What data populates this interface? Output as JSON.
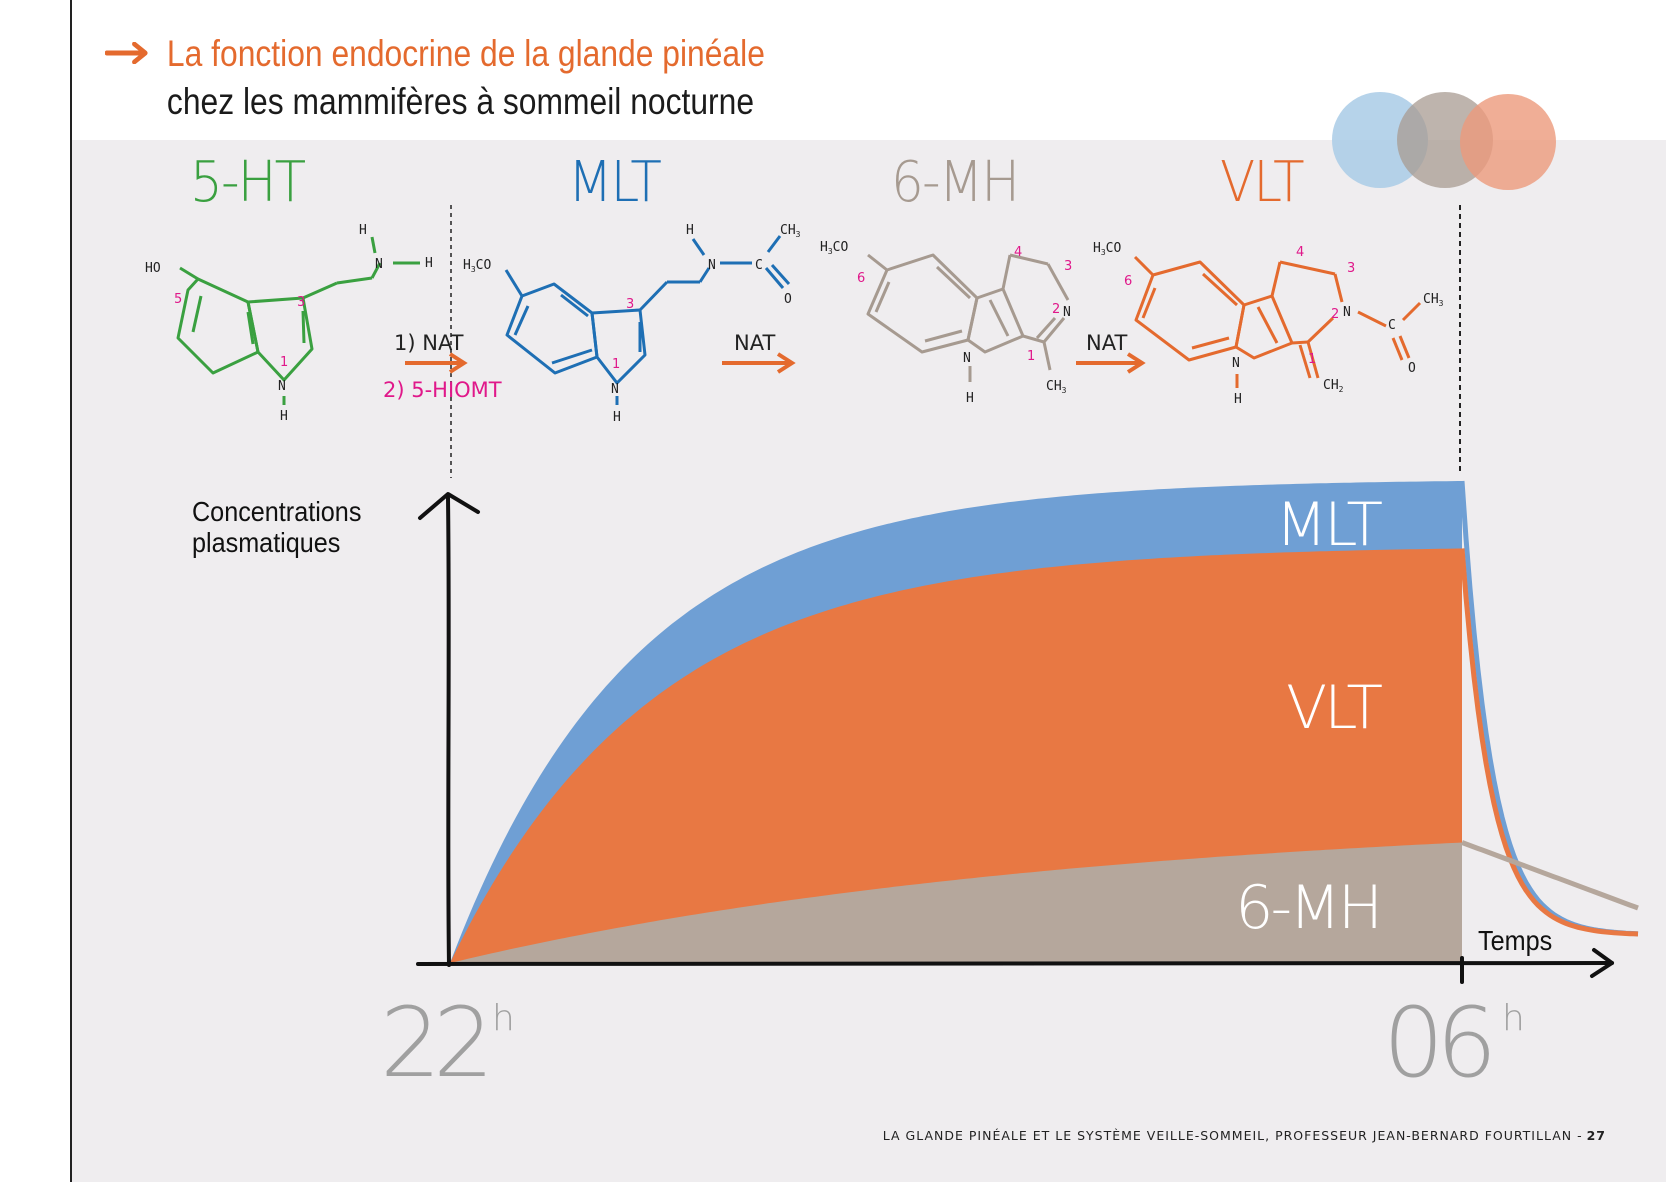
{
  "header": {
    "title": "La fonction endocrine de la glande pinéale",
    "subtitle": "chez les mammifères à sommeil nocturne",
    "title_color": "#e46a2e"
  },
  "molecules": [
    {
      "label": "5-HT",
      "color": "#3aa040"
    },
    {
      "label": "MLT",
      "color": "#1e6fb4"
    },
    {
      "label": "6-MH",
      "color": "#a69a90"
    },
    {
      "label": "VLT",
      "color": "#e46a2e"
    }
  ],
  "reactions": {
    "step1_a": "1) NAT",
    "step1_b": "2) 5-HIOMT",
    "step2": "NAT",
    "step3": "NAT"
  },
  "chart_data": {
    "type": "area",
    "ylabel_line1": "Concentrations",
    "ylabel_line2": "plasmatiques",
    "xlabel": "Temps",
    "x_start": "22",
    "x_end": "06",
    "unit": "h",
    "series": [
      {
        "name": "MLT",
        "color": "#6f9fd4",
        "plateau": 1.0
      },
      {
        "name": "VLT",
        "color": "#e87843",
        "plateau": 0.86
      },
      {
        "name": "6-MH",
        "color": "#b5a79c",
        "plateau": 0.25
      }
    ]
  },
  "footer": {
    "text": "LA GLANDE PINÉALE ET LE SYSTÈME VEILLE-SOMMEIL, PROFESSEUR JEAN-BERNARD FOURTILLAN -",
    "page": "27"
  }
}
